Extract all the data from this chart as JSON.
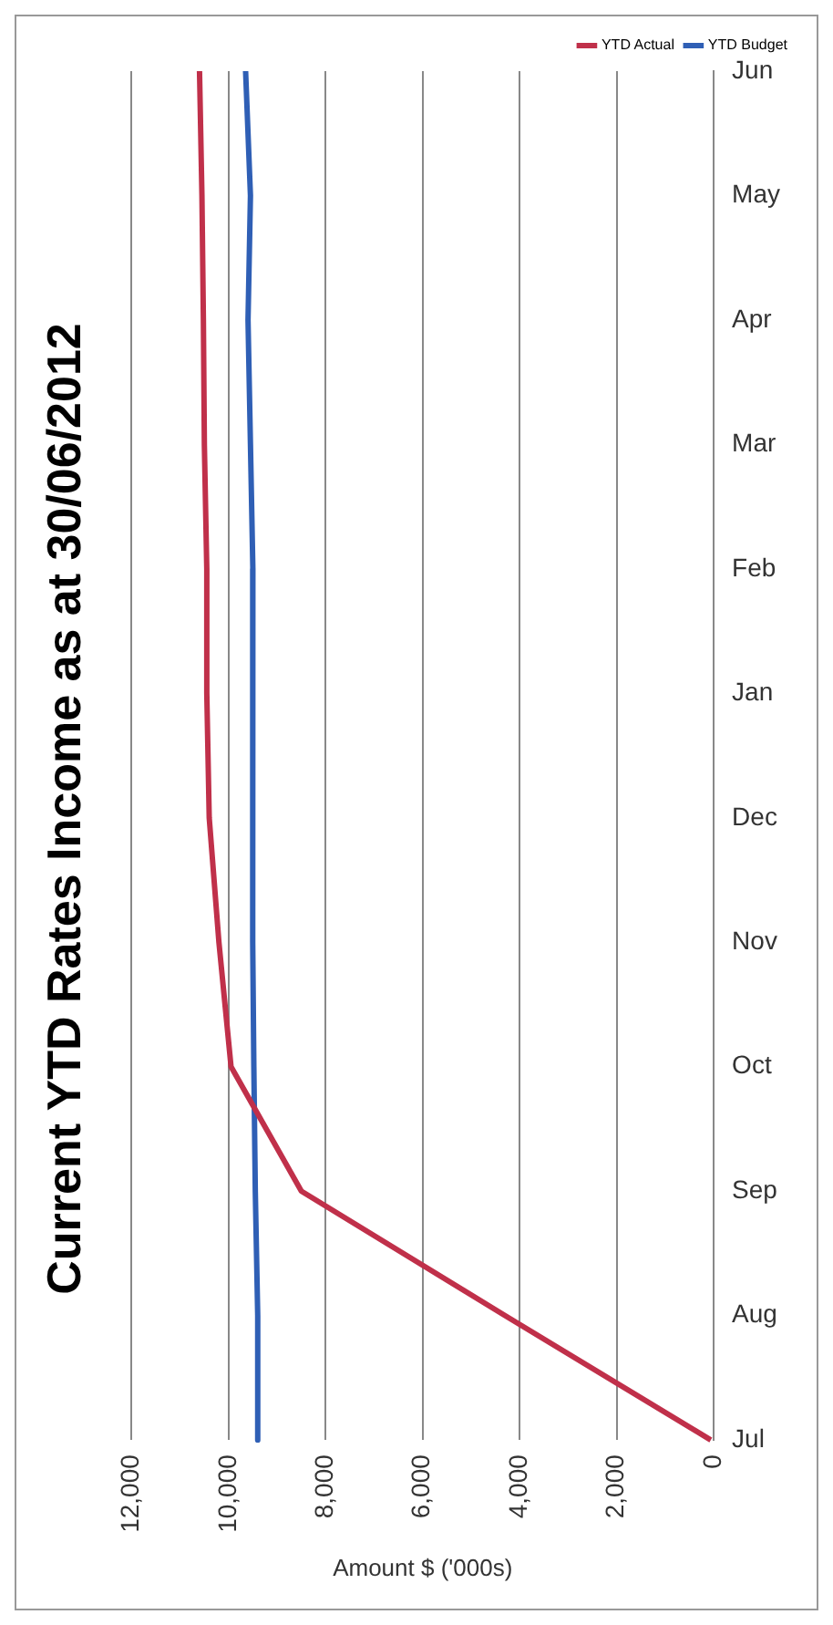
{
  "chart_data": {
    "type": "line",
    "orientation": "horizontal",
    "title": "Current YTD Rates Income as at 30/06/2012",
    "xlabel": "Amount $ ('000s)",
    "categories": [
      "Jun",
      "May",
      "Apr",
      "Mar",
      "Feb",
      "Jan",
      "Dec",
      "Nov",
      "Oct",
      "Sep",
      "Aug",
      "Jul"
    ],
    "series": [
      {
        "name": "YTD Actual",
        "color": "#c0304a",
        "values": [
          10600,
          10550,
          10520,
          10500,
          10450,
          10450,
          10400,
          10200,
          9950,
          8500,
          4300,
          60
        ]
      },
      {
        "name": "YTD Budget",
        "color": "#2f5fb5",
        "values": [
          9650,
          9550,
          9600,
          9550,
          9500,
          9510,
          9500,
          9500,
          9480,
          9450,
          9400,
          9400
        ]
      }
    ],
    "xlim": [
      12000,
      0
    ],
    "xticks": [
      0,
      {
        "value": 2000,
        "label": "2,000"
      },
      {
        "value": 4000,
        "label": "4,000"
      },
      {
        "value": 6000,
        "label": "6,000"
      },
      {
        "value": 8000,
        "label": "8,000"
      },
      {
        "value": 10000,
        "label": "10,000"
      },
      {
        "value": 12000,
        "label": "12,000"
      }
    ],
    "grid": "x",
    "legend": "top right",
    "marker": "none",
    "line_style": "solid"
  }
}
